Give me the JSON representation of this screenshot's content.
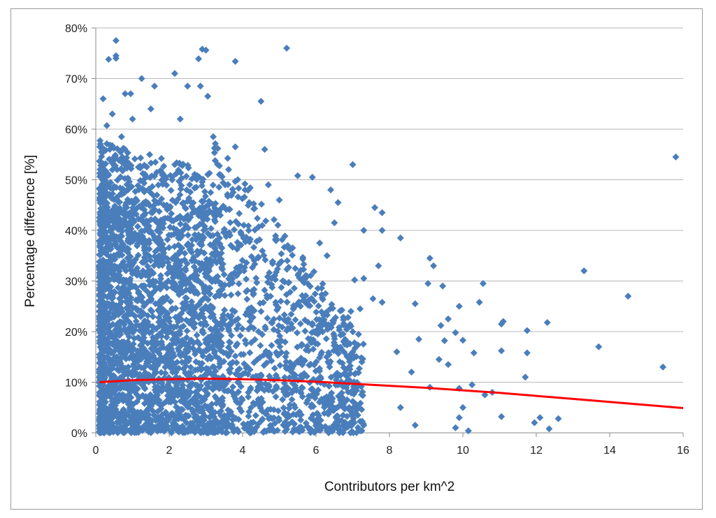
{
  "chart_data": {
    "type": "scatter",
    "title": "",
    "xlabel": "Contributors per km^2",
    "ylabel": "Percentage difference [%]",
    "xlim": [
      0,
      16
    ],
    "ylim": [
      0,
      80
    ],
    "x_ticks": [
      0,
      2,
      4,
      6,
      8,
      10,
      12,
      14,
      16
    ],
    "y_ticks": [
      0,
      10,
      20,
      30,
      40,
      50,
      60,
      70,
      80
    ],
    "x_tick_labels": [
      "0",
      "2",
      "4",
      "6",
      "8",
      "10",
      "12",
      "14",
      "16"
    ],
    "y_tick_labels": [
      "0%",
      "10%",
      "20%",
      "30%",
      "40%",
      "50%",
      "60%",
      "70%",
      "80%"
    ],
    "grid": true,
    "legend": "none",
    "colors": {
      "points": "#4a7ebb",
      "trend": "#ff0000",
      "grid": "#b8b8b8"
    },
    "series": [
      {
        "marker": "diamond",
        "color": "#4a7ebb",
        "points": [
          [
            0.55,
            77.5
          ],
          [
            0.35,
            73.8
          ],
          [
            0.55,
            74.5
          ],
          [
            0.55,
            74.0
          ],
          [
            2.9,
            75.8
          ],
          [
            3.0,
            75.6
          ],
          [
            5.2,
            76.0
          ],
          [
            2.8,
            73.9
          ],
          [
            3.8,
            73.4
          ],
          [
            1.25,
            70.0
          ],
          [
            2.15,
            71.0
          ],
          [
            0.2,
            66.0
          ],
          [
            0.8,
            67.0
          ],
          [
            0.95,
            67.0
          ],
          [
            1.6,
            68.5
          ],
          [
            2.5,
            68.5
          ],
          [
            2.85,
            68.5
          ],
          [
            3.05,
            66.5
          ],
          [
            4.5,
            65.5
          ],
          [
            0.3,
            60.7
          ],
          [
            0.45,
            63.0
          ],
          [
            1.0,
            62.0
          ],
          [
            1.5,
            64.0
          ],
          [
            2.3,
            62.0
          ],
          [
            3.2,
            58.5
          ],
          [
            3.8,
            56.5
          ],
          [
            4.6,
            56.0
          ],
          [
            0.7,
            58.5
          ],
          [
            15.8,
            54.5
          ],
          [
            7.0,
            53.0
          ],
          [
            5.5,
            50.8
          ],
          [
            5.9,
            50.5
          ],
          [
            6.4,
            48.0
          ],
          [
            6.6,
            45.5
          ],
          [
            6.5,
            41.5
          ],
          [
            7.6,
            44.5
          ],
          [
            7.8,
            43.5
          ],
          [
            7.3,
            40.0
          ],
          [
            7.8,
            40.0
          ],
          [
            8.3,
            38.5
          ],
          [
            5.0,
            46.0
          ],
          [
            4.7,
            49.0
          ],
          [
            6.1,
            37.5
          ],
          [
            6.3,
            35.0
          ],
          [
            9.1,
            34.5
          ],
          [
            9.2,
            33.0
          ],
          [
            7.7,
            33.0
          ],
          [
            13.3,
            32.0
          ],
          [
            10.55,
            29.5
          ],
          [
            9.05,
            29.5
          ],
          [
            9.45,
            29.0
          ],
          [
            7.05,
            30.2
          ],
          [
            7.3,
            30.5
          ],
          [
            14.5,
            27.0
          ],
          [
            10.45,
            25.8
          ],
          [
            8.7,
            25.5
          ],
          [
            7.55,
            26.5
          ],
          [
            7.8,
            25.8
          ],
          [
            9.9,
            25.0
          ],
          [
            7.2,
            24.5
          ],
          [
            6.95,
            24.0
          ],
          [
            9.6,
            22.5
          ],
          [
            11.1,
            22.0
          ],
          [
            12.3,
            21.8
          ],
          [
            11.05,
            21.5
          ],
          [
            9.4,
            21.2
          ],
          [
            9.8,
            19.8
          ],
          [
            11.75,
            20.2
          ],
          [
            8.8,
            18.5
          ],
          [
            9.5,
            18.2
          ],
          [
            10.0,
            18.3
          ],
          [
            13.7,
            17.0
          ],
          [
            11.05,
            16.2
          ],
          [
            11.75,
            15.8
          ],
          [
            10.3,
            15.8
          ],
          [
            9.35,
            14.5
          ],
          [
            9.6,
            13.5
          ],
          [
            15.45,
            13.0
          ],
          [
            11.7,
            11.0
          ],
          [
            9.1,
            9.0
          ],
          [
            9.9,
            8.8
          ],
          [
            10.25,
            9.5
          ],
          [
            10.0,
            5.0
          ],
          [
            10.6,
            7.5
          ],
          [
            10.8,
            8.0
          ],
          [
            11.05,
            3.2
          ],
          [
            11.95,
            2.0
          ],
          [
            12.1,
            3.0
          ],
          [
            12.6,
            2.8
          ],
          [
            12.35,
            0.8
          ],
          [
            9.8,
            1.0
          ],
          [
            10.15,
            0.4
          ],
          [
            9.9,
            3.0
          ],
          [
            8.7,
            1.5
          ],
          [
            8.3,
            5.0
          ],
          [
            8.6,
            12.0
          ],
          [
            8.2,
            16.0
          ]
        ]
      }
    ],
    "trend": {
      "color": "#ff0000",
      "x": [
        0.1,
        1,
        2,
        3,
        4,
        5,
        6,
        7,
        8,
        9,
        10,
        11,
        12,
        13,
        14,
        15,
        16
      ],
      "y": [
        10.0,
        10.4,
        10.6,
        10.7,
        10.6,
        10.4,
        10.1,
        9.7,
        9.3,
        8.9,
        8.4,
        7.9,
        7.3,
        6.7,
        6.1,
        5.5,
        4.9
      ]
    }
  }
}
